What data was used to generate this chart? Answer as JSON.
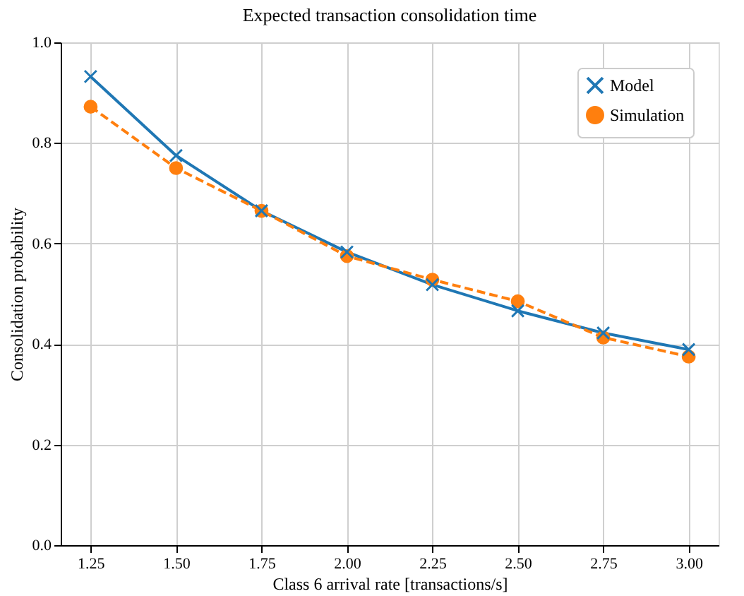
{
  "chart_data": {
    "type": "line",
    "title": "Expected transaction consolidation time",
    "xlabel": "Class 6 arrival rate [transactions/s]",
    "ylabel": "Consolidation probability",
    "x": [
      1.25,
      1.5,
      1.75,
      2.0,
      2.25,
      2.5,
      2.75,
      3.0
    ],
    "series": [
      {
        "name": "Model",
        "color": "#1f77b4",
        "marker": "cross",
        "line_style": "solid",
        "values": [
          0.932,
          0.775,
          0.665,
          0.583,
          0.518,
          0.466,
          0.422,
          0.389
        ]
      },
      {
        "name": "Simulation",
        "color": "#ff7f0e",
        "marker": "circle",
        "line_style": "dashed",
        "values": [
          0.872,
          0.75,
          0.665,
          0.575,
          0.528,
          0.485,
          0.413,
          0.375
        ]
      }
    ],
    "xlim": [
      1.1625,
      3.0875
    ],
    "xticks": [
      {
        "value": 1.25,
        "label": "1.25"
      },
      {
        "value": 1.5,
        "label": "1.50"
      },
      {
        "value": 1.75,
        "label": "1.75"
      },
      {
        "value": 2.0,
        "label": "2.00"
      },
      {
        "value": 2.25,
        "label": "2.25"
      },
      {
        "value": 2.5,
        "label": "2.50"
      },
      {
        "value": 2.75,
        "label": "2.75"
      },
      {
        "value": 3.0,
        "label": "3.00"
      }
    ],
    "ylim": [
      0,
      1
    ],
    "yticks": [
      {
        "value": 0,
        "label": "0.0"
      },
      {
        "value": 0.2,
        "label": "0.2"
      },
      {
        "value": 0.4,
        "label": "0.4"
      },
      {
        "value": 0.6,
        "label": "0.6"
      },
      {
        "value": 0.8,
        "label": "0.8"
      },
      {
        "value": 1,
        "label": "1.0"
      }
    ],
    "grid": true,
    "legend": "top right"
  }
}
